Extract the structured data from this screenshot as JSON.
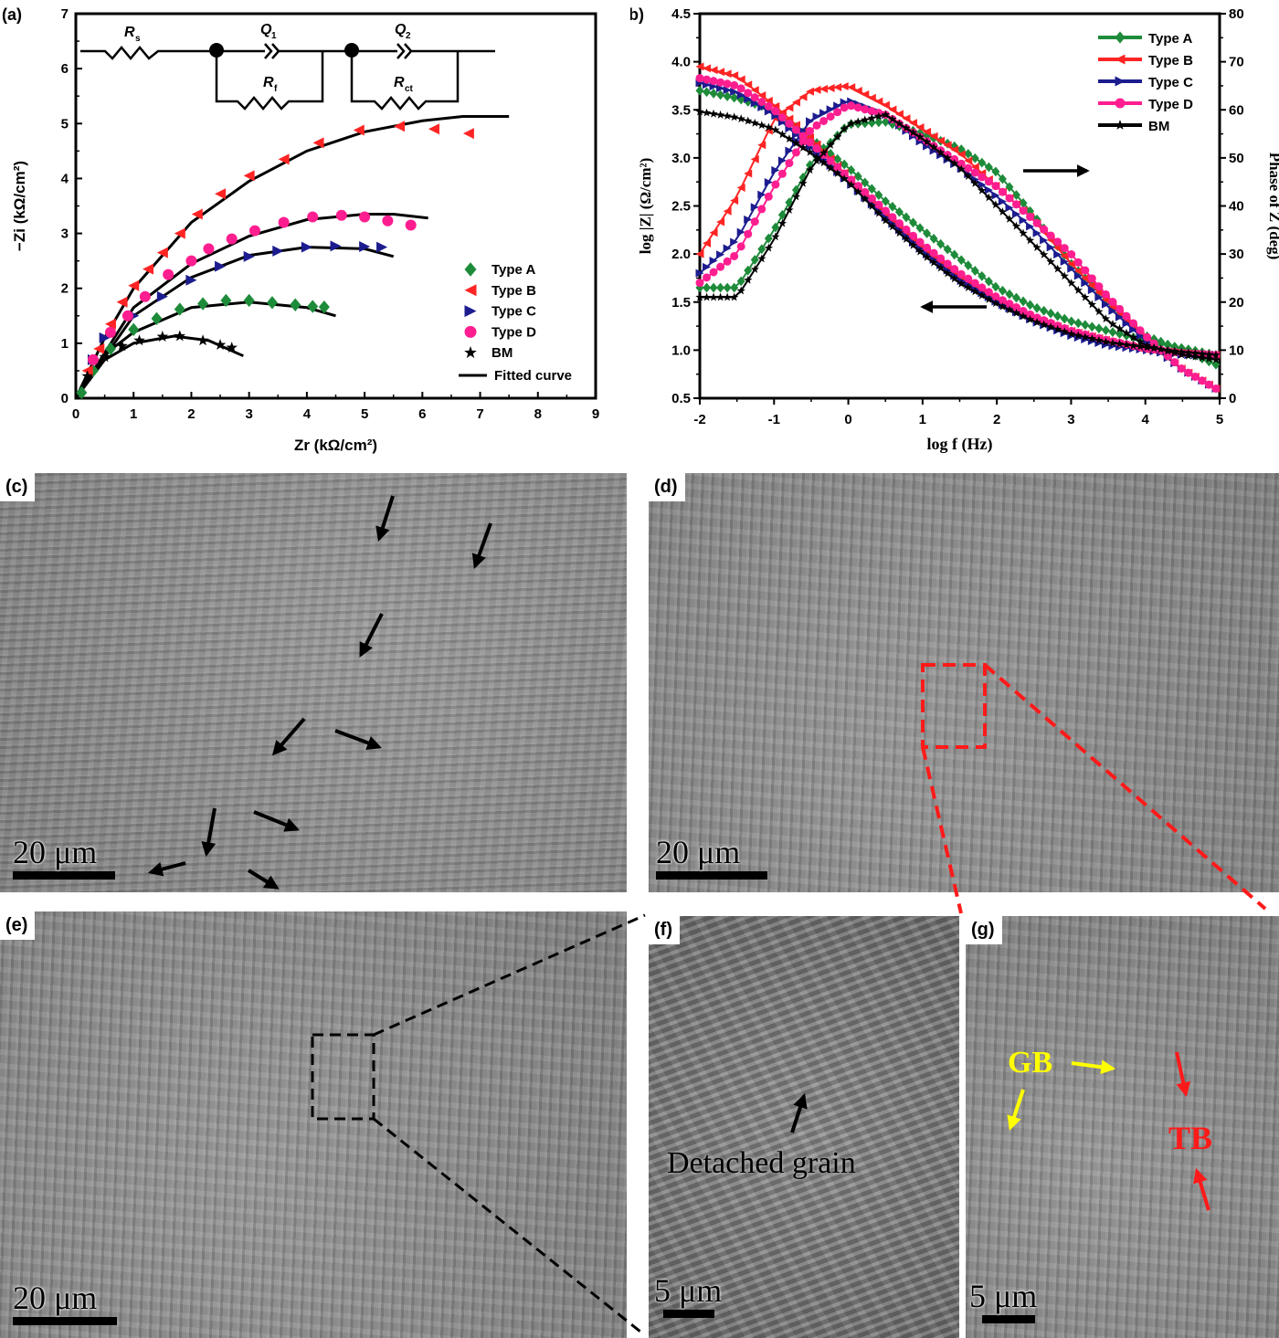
{
  "panel_labels": {
    "a": "(a)",
    "b": "(b)",
    "c": "(c)",
    "d": "(d)",
    "e": "(e)",
    "f": "(f)",
    "g": "(g)"
  },
  "circuit": {
    "rs": {
      "symbol": "R",
      "sub": "s"
    },
    "q1": {
      "symbol": "Q",
      "sub": "1"
    },
    "rf": {
      "symbol": "R",
      "sub": "f"
    },
    "q2": {
      "symbol": "Q",
      "sub": "2"
    },
    "rct": {
      "symbol": "R",
      "sub": "ct"
    }
  },
  "colors": {
    "Type A": "#1e8b3a",
    "Type B": "#ff2424",
    "Type C": "#1c1c8f",
    "Type D": "#ff1e90",
    "BM": "#000000"
  },
  "chart_data": [
    {
      "type": "scatter",
      "panel": "(a)",
      "xlabel": "Zr (kΩ/cm²)",
      "ylabel": "−Zi (kΩ/cm²)",
      "xlim": [
        0,
        9
      ],
      "ylim": [
        0,
        7
      ],
      "xticks": [
        0,
        1,
        2,
        3,
        4,
        5,
        6,
        7,
        8,
        9
      ],
      "yticks": [
        0,
        1,
        2,
        3,
        4,
        5,
        6,
        7
      ],
      "grid": false,
      "legend": "bottom-right",
      "series": [
        {
          "name": "Type A",
          "marker": "diamond",
          "x": [
            0.1,
            0.3,
            0.6,
            1.0,
            1.4,
            1.8,
            2.2,
            2.6,
            3.0,
            3.4,
            3.8,
            4.1,
            4.3
          ],
          "y": [
            0.1,
            0.5,
            0.9,
            1.25,
            1.45,
            1.62,
            1.72,
            1.78,
            1.78,
            1.74,
            1.7,
            1.67,
            1.66
          ]
        },
        {
          "name": "Type B",
          "marker": "triangle-left",
          "x": [
            0.2,
            0.4,
            0.6,
            0.8,
            1.0,
            1.25,
            1.5,
            1.8,
            2.1,
            2.5,
            3.0,
            3.6,
            4.2,
            4.9,
            5.6,
            6.2,
            6.8
          ],
          "y": [
            0.5,
            0.9,
            1.35,
            1.75,
            2.05,
            2.35,
            2.65,
            3.0,
            3.35,
            3.72,
            4.05,
            4.35,
            4.65,
            4.88,
            4.95,
            4.9,
            4.82
          ]
        },
        {
          "name": "Type C",
          "marker": "triangle-right",
          "x": [
            0.3,
            0.5,
            1.0,
            1.5,
            2.0,
            2.5,
            3.0,
            3.5,
            4.0,
            4.5,
            5.0,
            5.3
          ],
          "y": [
            0.7,
            1.1,
            1.5,
            1.85,
            2.15,
            2.4,
            2.58,
            2.68,
            2.75,
            2.77,
            2.76,
            2.75
          ]
        },
        {
          "name": "Type D",
          "marker": "circle",
          "x": [
            0.3,
            0.6,
            0.9,
            1.2,
            1.6,
            2.0,
            2.3,
            2.7,
            3.1,
            3.6,
            4.1,
            4.6,
            5.0,
            5.4,
            5.8
          ],
          "y": [
            0.7,
            1.2,
            1.5,
            1.85,
            2.25,
            2.5,
            2.72,
            2.9,
            3.05,
            3.2,
            3.3,
            3.33,
            3.3,
            3.23,
            3.15
          ]
        },
        {
          "name": "BM",
          "marker": "star",
          "x": [
            0.2,
            0.5,
            0.8,
            1.1,
            1.5,
            1.8,
            2.2,
            2.5,
            2.7
          ],
          "y": [
            0.4,
            0.75,
            0.95,
            1.05,
            1.12,
            1.13,
            1.05,
            0.97,
            0.92
          ]
        }
      ],
      "fits": [
        {
          "name": "Fitted curve",
          "x": [
            0,
            0.5,
            1,
            2,
            3,
            4,
            4.5
          ],
          "y": [
            0,
            0.8,
            1.2,
            1.65,
            1.75,
            1.65,
            1.5
          ]
        },
        {
          "x": [
            0,
            0.5,
            1,
            2,
            3,
            4,
            5,
            6,
            6.7,
            7.5
          ],
          "y": [
            0,
            1.1,
            2.0,
            3.2,
            3.95,
            4.5,
            4.85,
            5.05,
            5.13,
            5.13
          ]
        },
        {
          "x": [
            0,
            1,
            2,
            3,
            4,
            5,
            5.5
          ],
          "y": [
            0,
            1.5,
            2.2,
            2.6,
            2.75,
            2.72,
            2.58
          ]
        },
        {
          "x": [
            0,
            1,
            2,
            3,
            4,
            5,
            5.5,
            6.1
          ],
          "y": [
            0,
            1.65,
            2.45,
            2.95,
            3.25,
            3.35,
            3.35,
            3.28
          ]
        },
        {
          "x": [
            0,
            0.5,
            1,
            1.7,
            2.3,
            2.9
          ],
          "y": [
            0,
            0.7,
            1.0,
            1.13,
            1.05,
            0.77
          ]
        }
      ],
      "legend_entries": [
        "Type A",
        "Type B",
        "Type C",
        "Type D",
        "BM",
        "Fitted curve"
      ]
    },
    {
      "type": "line",
      "panel": "(b)",
      "xlabel": "log f (Hz)",
      "ylabel": "log |Z| (Ω/cm²)",
      "y2label": "Phase of Z (deg)",
      "xlim": [
        -2,
        5
      ],
      "ylim": [
        0.5,
        4.5
      ],
      "y2lim": [
        0,
        80
      ],
      "xticks": [
        -2,
        -1,
        0,
        1,
        2,
        3,
        4,
        5
      ],
      "yticks": [
        0.5,
        1.0,
        1.5,
        2.0,
        2.5,
        3.0,
        3.5,
        4.0,
        4.5
      ],
      "y2ticks": [
        0,
        10,
        20,
        30,
        40,
        50,
        60,
        70,
        80
      ],
      "grid": false,
      "legend": "top-right",
      "x": [
        -2,
        -1.5,
        -1,
        -0.5,
        0,
        0.5,
        1,
        1.5,
        2,
        2.5,
        3,
        3.5,
        4,
        4.5,
        4.95
      ],
      "series": [
        {
          "name": "Type A",
          "marker": "diamond",
          "logZ": [
            3.7,
            3.62,
            3.5,
            3.2,
            2.9,
            2.55,
            2.25,
            1.95,
            1.65,
            1.45,
            1.3,
            1.2,
            1.1,
            1.02,
            0.95
          ],
          "phase": [
            23,
            23,
            35,
            49,
            57,
            57.5,
            55,
            52,
            47,
            38,
            28,
            20,
            13,
            10,
            7
          ]
        },
        {
          "name": "Type B",
          "marker": "triangle-left",
          "logZ": [
            3.95,
            3.85,
            3.55,
            3.2,
            2.8,
            2.4,
            2.05,
            1.75,
            1.5,
            1.33,
            1.2,
            1.1,
            1.0,
            0.97,
            0.95
          ],
          "phase": [
            30,
            42,
            58,
            64,
            65,
            61,
            56,
            51,
            44,
            37,
            28,
            20,
            12,
            6,
            2
          ]
        },
        {
          "name": "Type C",
          "marker": "triangle-right",
          "logZ": [
            3.78,
            3.68,
            3.45,
            3.1,
            2.75,
            2.38,
            2.03,
            1.73,
            1.5,
            1.3,
            1.15,
            1.05,
            1.0,
            0.95,
            0.95
          ],
          "phase": [
            26,
            33,
            47,
            58,
            62,
            59,
            53,
            48,
            42,
            35,
            27,
            19,
            12,
            6,
            2
          ]
        },
        {
          "name": "Type D",
          "marker": "circle",
          "logZ": [
            3.83,
            3.75,
            3.5,
            3.15,
            2.8,
            2.45,
            2.1,
            1.8,
            1.55,
            1.35,
            1.2,
            1.1,
            1.02,
            0.97,
            0.95
          ],
          "phase": [
            24,
            30,
            44,
            56,
            61,
            59,
            54,
            49,
            44,
            37,
            30,
            21,
            13,
            6,
            2
          ]
        },
        {
          "name": "BM",
          "marker": "star",
          "logZ": [
            3.48,
            3.42,
            3.3,
            3.05,
            2.75,
            2.35,
            2.0,
            1.7,
            1.48,
            1.3,
            1.17,
            1.08,
            1.03,
            0.98,
            0.95
          ],
          "phase": [
            21,
            21,
            33,
            48,
            57,
            59,
            54,
            48,
            40,
            32,
            24,
            16,
            11,
            9,
            8
          ]
        }
      ]
    }
  ],
  "sem": {
    "c": {
      "scale": "20 μm"
    },
    "d": {
      "scale": "20 μm"
    },
    "e": {
      "scale": "20 μm"
    },
    "f": {
      "scale": "5 μm",
      "annotation": "Detached grain"
    },
    "g": {
      "scale": "5 μm",
      "gb": "GB",
      "tb": "TB"
    }
  }
}
